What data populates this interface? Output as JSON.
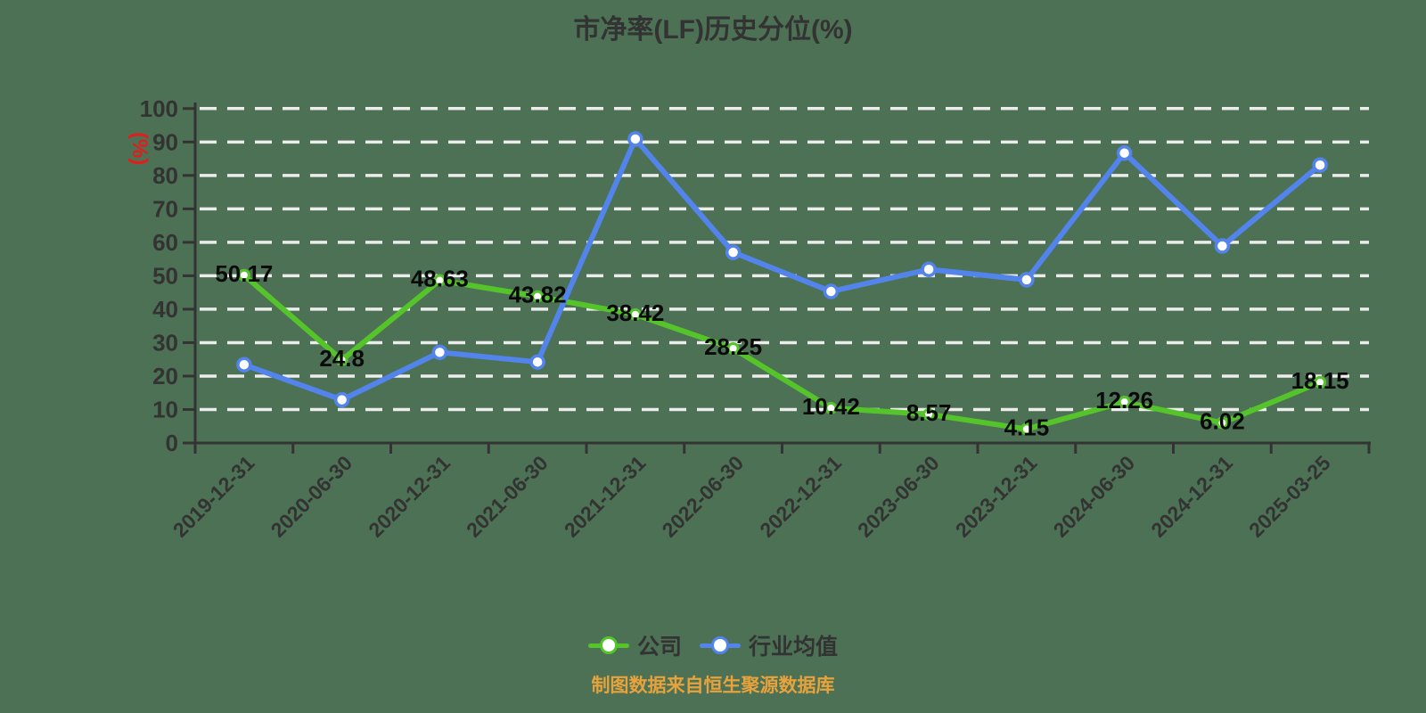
{
  "page": {
    "background": "#4d7154",
    "axis_color": "#333333",
    "grid_color": "#ececec",
    "data_label_color": "#0a0a0a",
    "y_unit_color": "#e31c1c",
    "source_color": "#e6a23c"
  },
  "chart_data": {
    "type": "line",
    "title": "市净率(LF)历史分位(%)",
    "y_unit": "(%)",
    "categories": [
      "2019-12-31",
      "2020-06-30",
      "2020-12-31",
      "2021-06-30",
      "2021-12-31",
      "2022-06-30",
      "2022-12-31",
      "2023-06-30",
      "2023-12-31",
      "2024-06-30",
      "2024-12-31",
      "2025-03-25"
    ],
    "series": [
      {
        "name": "公司",
        "color": "#55c42b",
        "labeled": true,
        "values": [
          50.17,
          24.8,
          48.63,
          43.82,
          38.42,
          28.25,
          10.42,
          8.57,
          4.15,
          12.26,
          6.02,
          18.15
        ]
      },
      {
        "name": "行业均值",
        "color": "#5384ec",
        "labeled": false,
        "values": [
          23.4,
          12.9,
          27.1,
          24.2,
          90.9,
          57.0,
          45.3,
          51.9,
          48.8,
          86.7,
          58.9,
          83.1
        ]
      }
    ],
    "ylim": [
      0,
      100
    ],
    "y_tick_step": 10,
    "grid": "dashed-horizontal",
    "legend_position": "bottom"
  },
  "source_note": "制图数据来自恒生聚源数据库"
}
